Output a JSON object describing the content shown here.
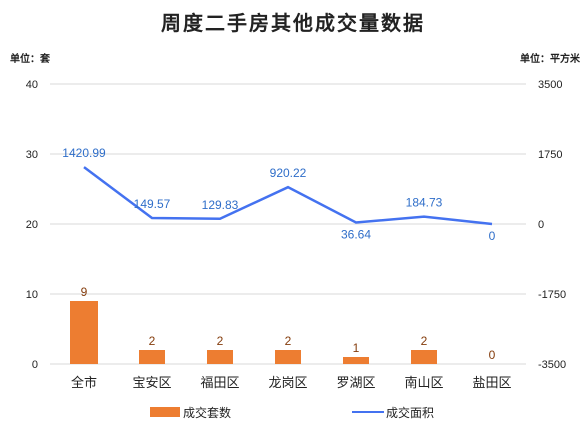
{
  "chart_data": {
    "type": "bar",
    "title": "周度二手房其他成交量数据",
    "left_unit": "单位：套",
    "right_unit": "单位：平方米",
    "categories": [
      "全市",
      "宝安区",
      "福田区",
      "龙岗区",
      "罗湖区",
      "南山区",
      "盐田区"
    ],
    "series": [
      {
        "name": "成交套数",
        "type": "bar",
        "axis": "left",
        "color": "#ed7d31",
        "values": [
          9,
          2,
          2,
          2,
          1,
          2,
          0
        ],
        "labels": [
          "9",
          "2",
          "2",
          "2",
          "1",
          "2",
          "0"
        ]
      },
      {
        "name": "成交面积",
        "type": "line",
        "axis": "right",
        "color": "#4472f0",
        "values": [
          1420.99,
          149.57,
          129.83,
          920.22,
          36.64,
          184.73,
          0
        ],
        "labels": [
          "1420.99",
          "149.57",
          "129.83",
          "920.22",
          "36.64",
          "184.73",
          "0"
        ]
      }
    ],
    "y_left": {
      "ylim": [
        0,
        40
      ],
      "ticks": [
        "0",
        "10",
        "20",
        "30",
        "40"
      ]
    },
    "y_right": {
      "ylim": [
        -3500,
        3500
      ],
      "ticks": [
        "-3500",
        "-1750",
        "0",
        "1750",
        "3500"
      ]
    },
    "grid": true,
    "legend_position": "bottom"
  }
}
